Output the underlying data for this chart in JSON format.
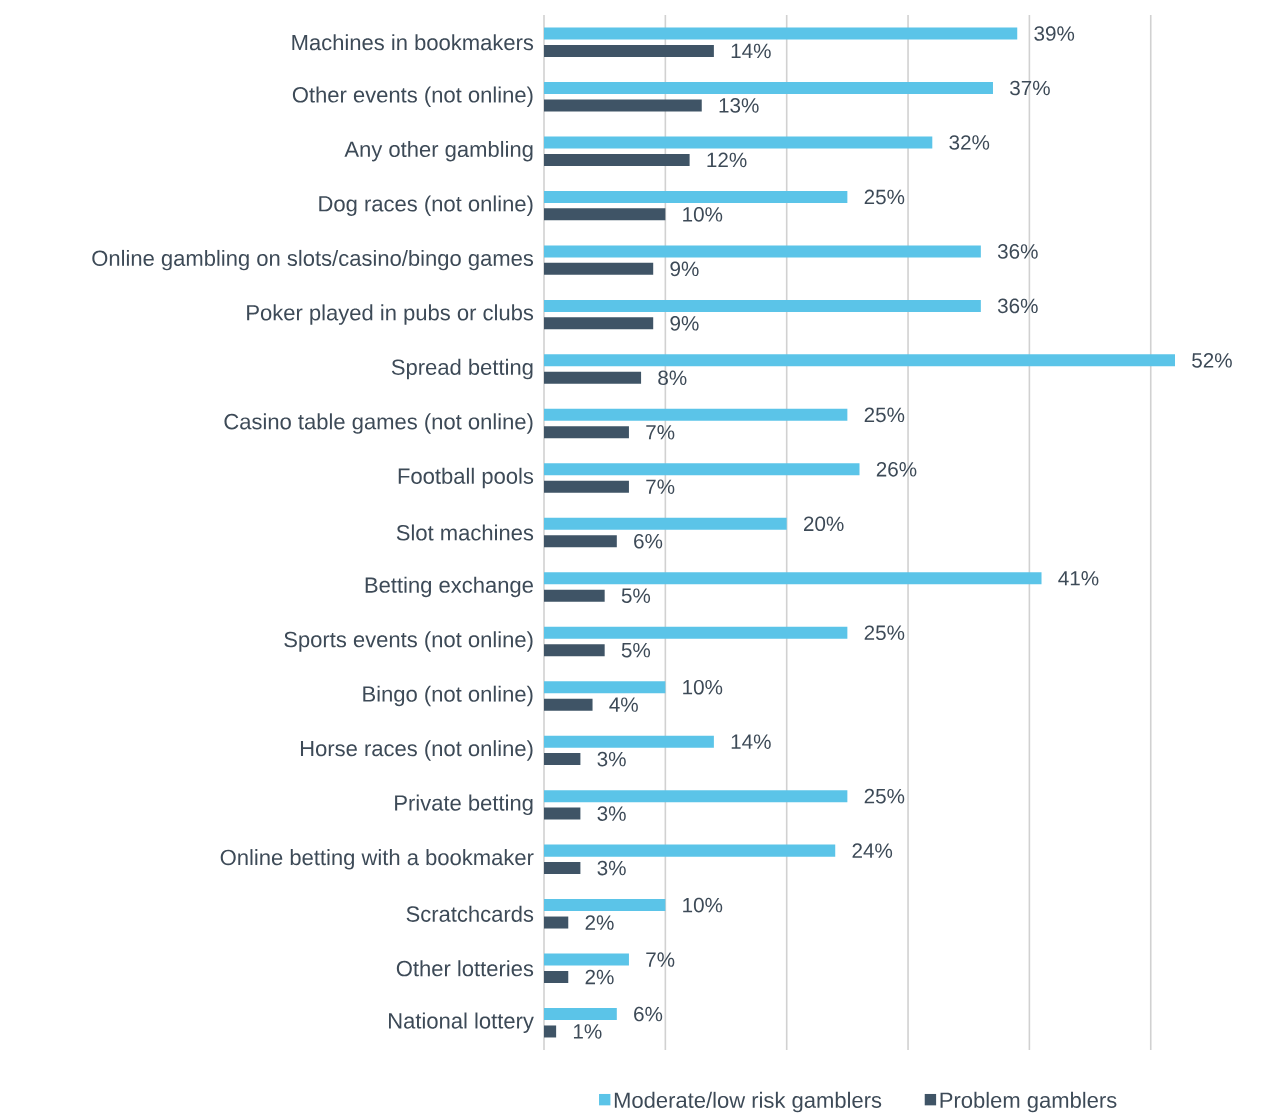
{
  "chart_data": {
    "type": "bar",
    "orientation": "horizontal",
    "categories": [
      "Machines in bookmakers",
      "Other events (not online)",
      "Any other gambling",
      "Dog races (not online)",
      "Online gambling on slots/casino/bingo games",
      "Poker played in pubs or clubs",
      "Spread betting",
      "Casino table games (not online)",
      "Football pools",
      "Slot machines",
      "Betting exchange",
      "Sports events (not online)",
      "Bingo (not online)",
      "Horse races (not online)",
      "Private betting",
      "Online betting with a bookmaker",
      "Scratchcards",
      "Other lotteries",
      "National lottery"
    ],
    "series": [
      {
        "name": "Moderate/low risk gamblers",
        "color": "#5bc4e8",
        "values": [
          39,
          37,
          32,
          25,
          36,
          36,
          52,
          25,
          26,
          20,
          41,
          25,
          10,
          14,
          25,
          24,
          10,
          7,
          6
        ],
        "value_labels": [
          "39%",
          "37%",
          "32%",
          "25%",
          "36%",
          "36%",
          "52%",
          "25%",
          "26%",
          "20%",
          "41%",
          "25%",
          "10%",
          "14%",
          "25%",
          "24%",
          "10%",
          "7%",
          "6%"
        ]
      },
      {
        "name": "Problem gamblers",
        "color": "#3f5466",
        "values": [
          14,
          13,
          12,
          10,
          9,
          9,
          8,
          7,
          7,
          6,
          5,
          5,
          4,
          3,
          3,
          3,
          2,
          2,
          1
        ],
        "value_labels": [
          "14%",
          "13%",
          "12%",
          "10%",
          "9%",
          "9%",
          "8%",
          "7%",
          "7%",
          "6%",
          "5%",
          "5%",
          "4%",
          "3%",
          "3%",
          "3%",
          "2%",
          "2%",
          "1%"
        ]
      }
    ],
    "xlim": [
      0,
      52
    ],
    "tick_labels": "y",
    "grid": "x",
    "legend": "bottom"
  }
}
